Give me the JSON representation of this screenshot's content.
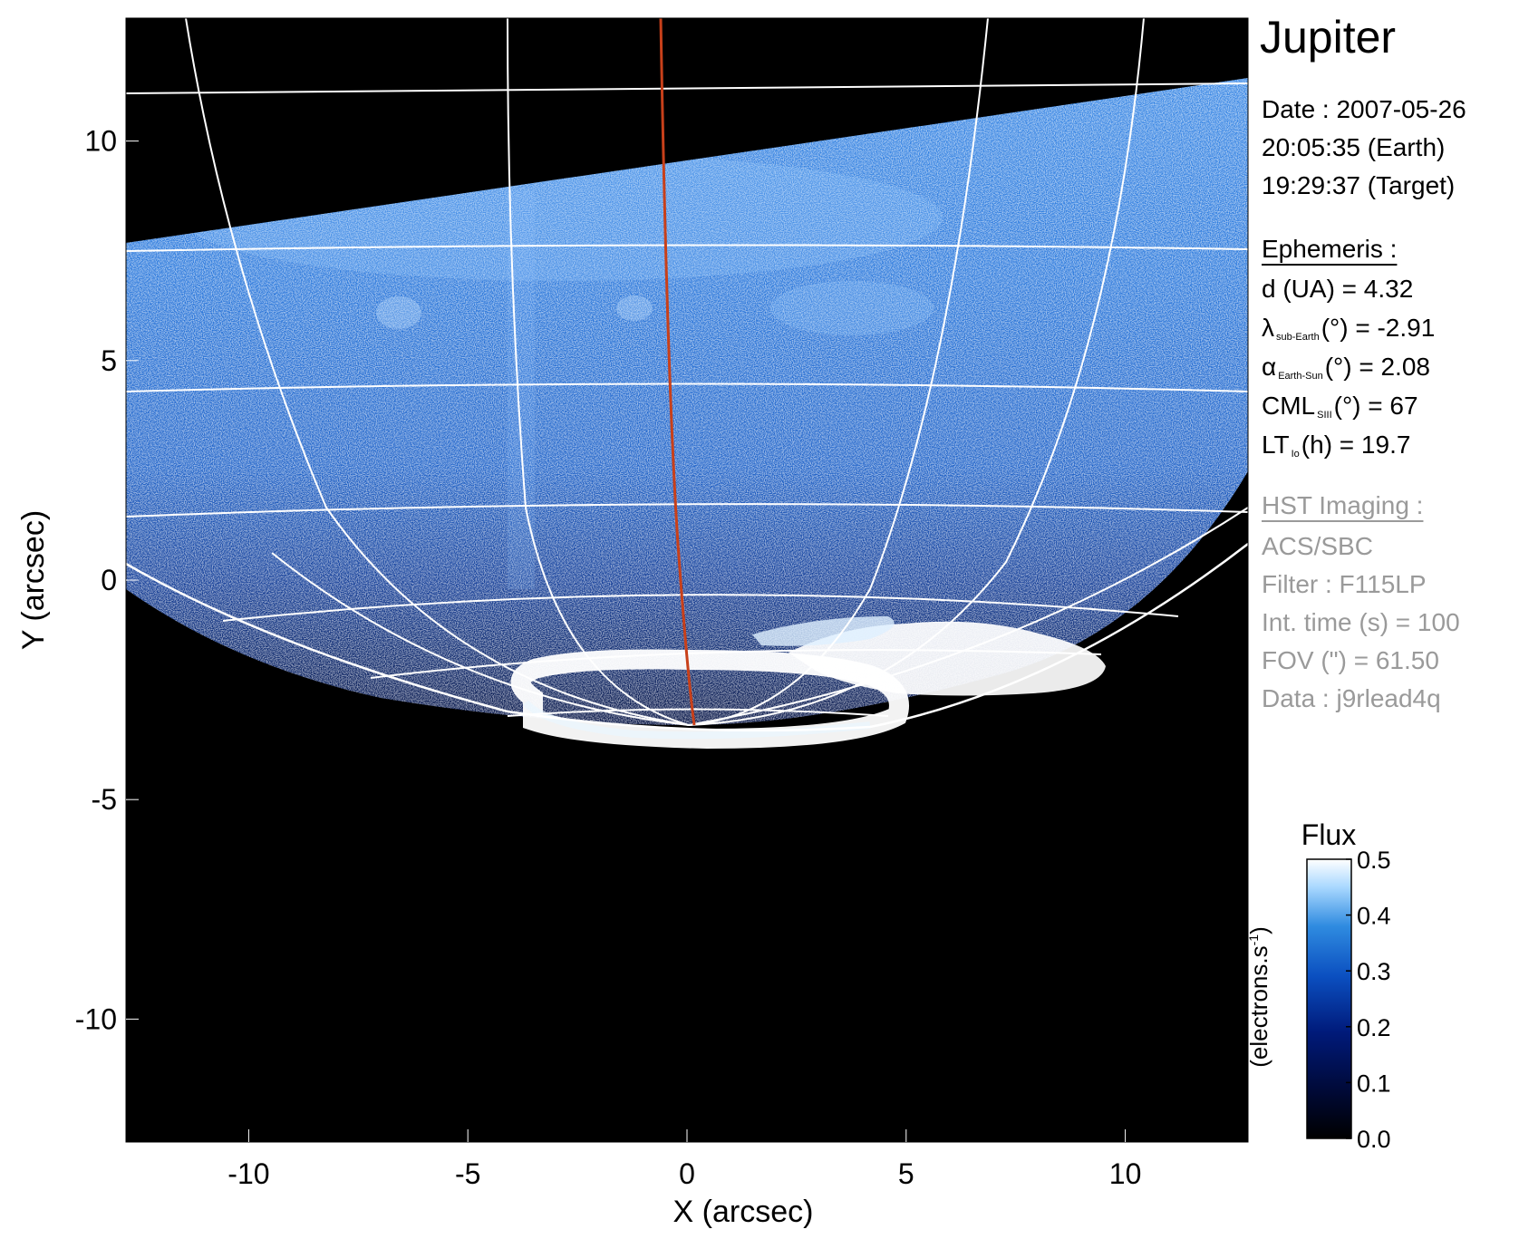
{
  "chart_data": {
    "type": "heatmap",
    "xlabel": "X (arcsec)",
    "ylabel": "Y (arcsec)",
    "xlim": [
      -12.8,
      12.8
    ],
    "ylim": [
      -12.8,
      12.8
    ],
    "xticks": [
      -10,
      -5,
      0,
      5,
      10
    ],
    "yticks": [
      -10,
      -5,
      0,
      5,
      10
    ],
    "x_tick_labels": [
      "-10",
      "-5",
      "0",
      "5",
      "10"
    ],
    "y_tick_labels": [
      "-10",
      "-5",
      "0",
      "5",
      "10"
    ],
    "grid": true,
    "overlay": {
      "central_meridian_color": "#c8401a",
      "grid_line_color": "#ffffff"
    },
    "colorbar": {
      "title": "Flux",
      "label": "(electrons.s",
      "label_sup": "-1",
      "label_close": ")",
      "range": [
        0.0,
        0.5
      ],
      "ticks": [
        "0.0",
        "0.1",
        "0.2",
        "0.3",
        "0.4",
        "0.5"
      ],
      "colors": [
        "#000000",
        "#000a3a",
        "#001a7a",
        "#0b4fc0",
        "#2f8be0",
        "#a9d8ff",
        "#ffffff"
      ]
    }
  },
  "info": {
    "target": "Jupiter",
    "date_line": "Date : 2007-05-26",
    "earth_time": "20:05:35 (Earth)",
    "target_time": "19:29:37 (Target)",
    "ephemeris_header": "Ephemeris :",
    "d_ua": "d (UA)    = 4.32",
    "lambda_symbol": "λ",
    "lambda_sub": "sub-Earth",
    "lambda_rest": "(°) = -2.91",
    "alpha_symbol": "α",
    "alpha_sub": "Earth-Sun",
    "alpha_rest": "(°) = 2.08",
    "cml_symbol": "CML",
    "cml_sub": "SIII",
    "cml_rest": "(°) = 67",
    "lt_symbol": "LT",
    "lt_sub": "Io",
    "lt_rest": "(h) = 19.7",
    "hst_header": "HST Imaging :",
    "instrument": "ACS/SBC",
    "filter": "Filter : F115LP",
    "int_time": "Int. time (s) = 100",
    "fov": "FOV (\") = 61.50",
    "data_id": "Data : j9rlead4q"
  }
}
